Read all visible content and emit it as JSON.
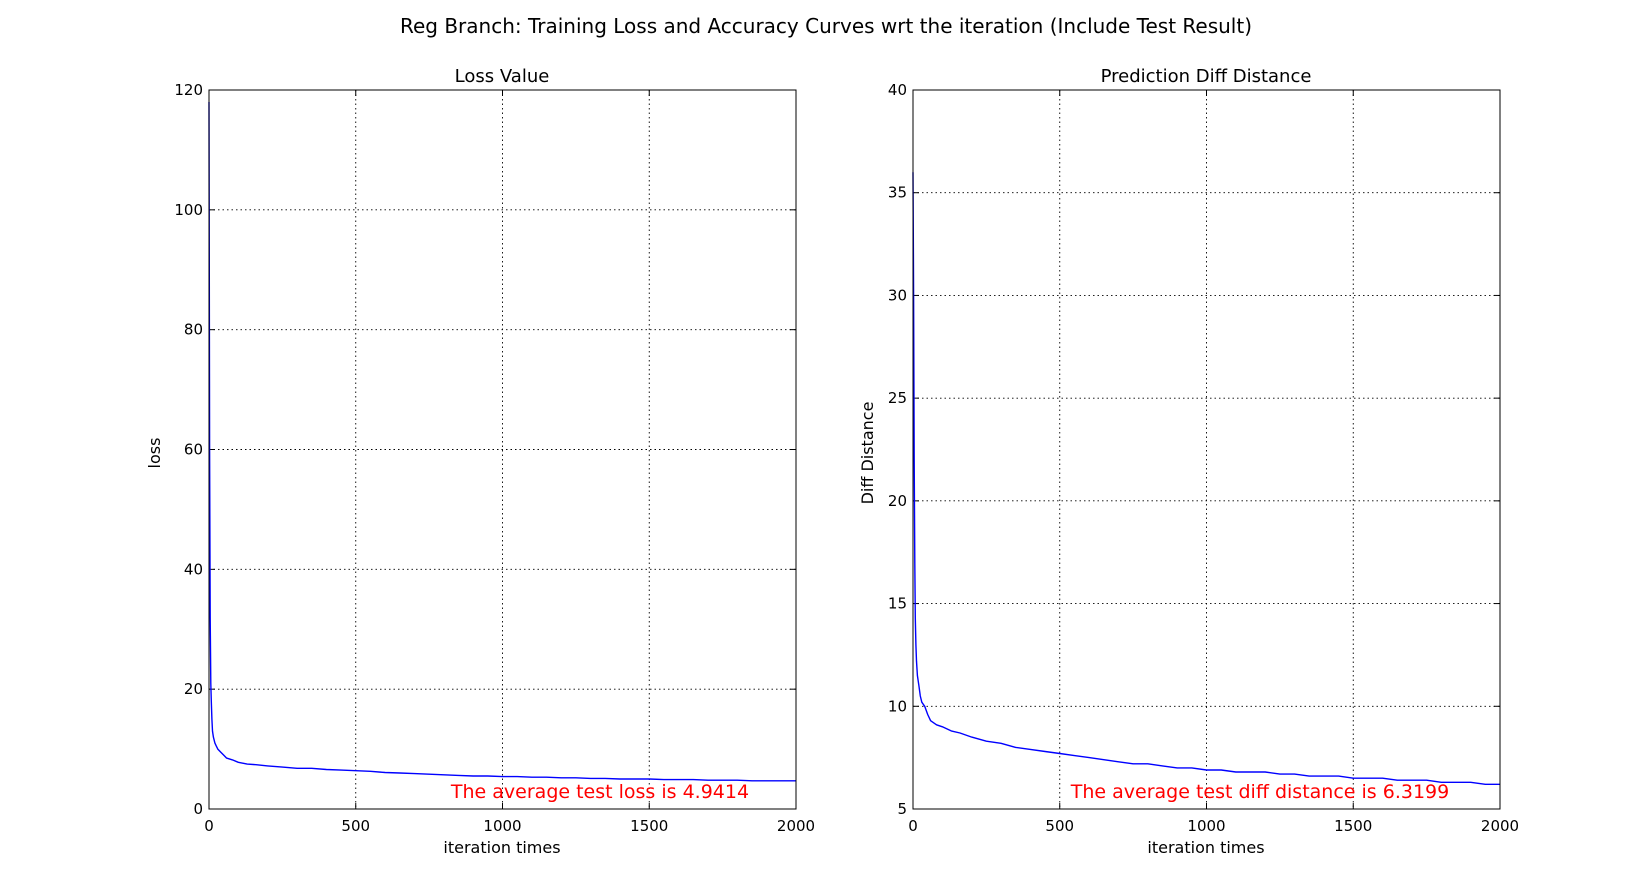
{
  "title": "Reg Branch: Training Loss and Accuracy Curves wrt the iteration (Include Test Result)",
  "chart_data": [
    {
      "type": "line",
      "title": "Loss Value",
      "xlabel": "iteration times",
      "ylabel": "loss",
      "xlim": [
        0,
        2000
      ],
      "ylim": [
        0,
        120
      ],
      "xticks": [
        0,
        500,
        1000,
        1500,
        2000
      ],
      "yticks": [
        0,
        20,
        40,
        60,
        80,
        100,
        120
      ],
      "grid": true,
      "color": "#0000ff",
      "annotation": "The average test loss is 4.9414",
      "annotation_color": "#ff0000",
      "series": [
        {
          "x": [
            0,
            2,
            4,
            6,
            8,
            10,
            12,
            15,
            20,
            25,
            30,
            40,
            50,
            60,
            80,
            100,
            130,
            160,
            200,
            250,
            300,
            350,
            400,
            450,
            500,
            550,
            600,
            650,
            700,
            750,
            800,
            850,
            900,
            950,
            1000,
            1050,
            1100,
            1150,
            1200,
            1250,
            1300,
            1350,
            1400,
            1450,
            1500,
            1550,
            1600,
            1650,
            1700,
            1750,
            1800,
            1850,
            1900,
            1950,
            2000
          ],
          "y": [
            118,
            60,
            32,
            21,
            18,
            15,
            13,
            12,
            11,
            10.5,
            10,
            9.5,
            9,
            8.5,
            8.2,
            7.8,
            7.5,
            7.4,
            7.2,
            7,
            6.8,
            6.8,
            6.6,
            6.5,
            6.4,
            6.3,
            6.1,
            6,
            5.9,
            5.8,
            5.7,
            5.6,
            5.5,
            5.5,
            5.4,
            5.4,
            5.3,
            5.3,
            5.2,
            5.2,
            5.1,
            5.1,
            5.0,
            5.0,
            5.0,
            4.9,
            4.9,
            4.9,
            4.8,
            4.8,
            4.8,
            4.7,
            4.7,
            4.7,
            4.7
          ]
        }
      ]
    },
    {
      "type": "line",
      "title": "Prediction Diff Distance",
      "xlabel": "iteration times",
      "ylabel": "Diff Distance",
      "xlim": [
        0,
        2000
      ],
      "ylim": [
        5,
        40
      ],
      "xticks": [
        0,
        500,
        1000,
        1500,
        2000
      ],
      "yticks": [
        5,
        10,
        15,
        20,
        25,
        30,
        35,
        40
      ],
      "grid": true,
      "color": "#0000ff",
      "annotation": "The average test diff distance is 6.3199",
      "annotation_color": "#ff0000",
      "series": [
        {
          "x": [
            0,
            2,
            4,
            6,
            8,
            10,
            12,
            15,
            20,
            25,
            30,
            40,
            50,
            60,
            80,
            100,
            130,
            160,
            200,
            250,
            300,
            350,
            400,
            450,
            500,
            550,
            600,
            650,
            700,
            750,
            800,
            850,
            900,
            950,
            1000,
            1050,
            1100,
            1150,
            1200,
            1250,
            1300,
            1350,
            1400,
            1450,
            1500,
            1550,
            1600,
            1650,
            1700,
            1750,
            1800,
            1850,
            1900,
            1950,
            2000
          ],
          "y": [
            36,
            30,
            22,
            17,
            14.3,
            13,
            12.2,
            11.5,
            11,
            10.5,
            10.2,
            10,
            9.6,
            9.3,
            9.1,
            9,
            8.8,
            8.7,
            8.5,
            8.3,
            8.2,
            8.0,
            7.9,
            7.8,
            7.7,
            7.6,
            7.5,
            7.4,
            7.3,
            7.2,
            7.2,
            7.1,
            7.0,
            7.0,
            6.9,
            6.9,
            6.8,
            6.8,
            6.8,
            6.7,
            6.7,
            6.6,
            6.6,
            6.6,
            6.5,
            6.5,
            6.5,
            6.4,
            6.4,
            6.4,
            6.3,
            6.3,
            6.3,
            6.2,
            6.2
          ]
        }
      ]
    }
  ]
}
